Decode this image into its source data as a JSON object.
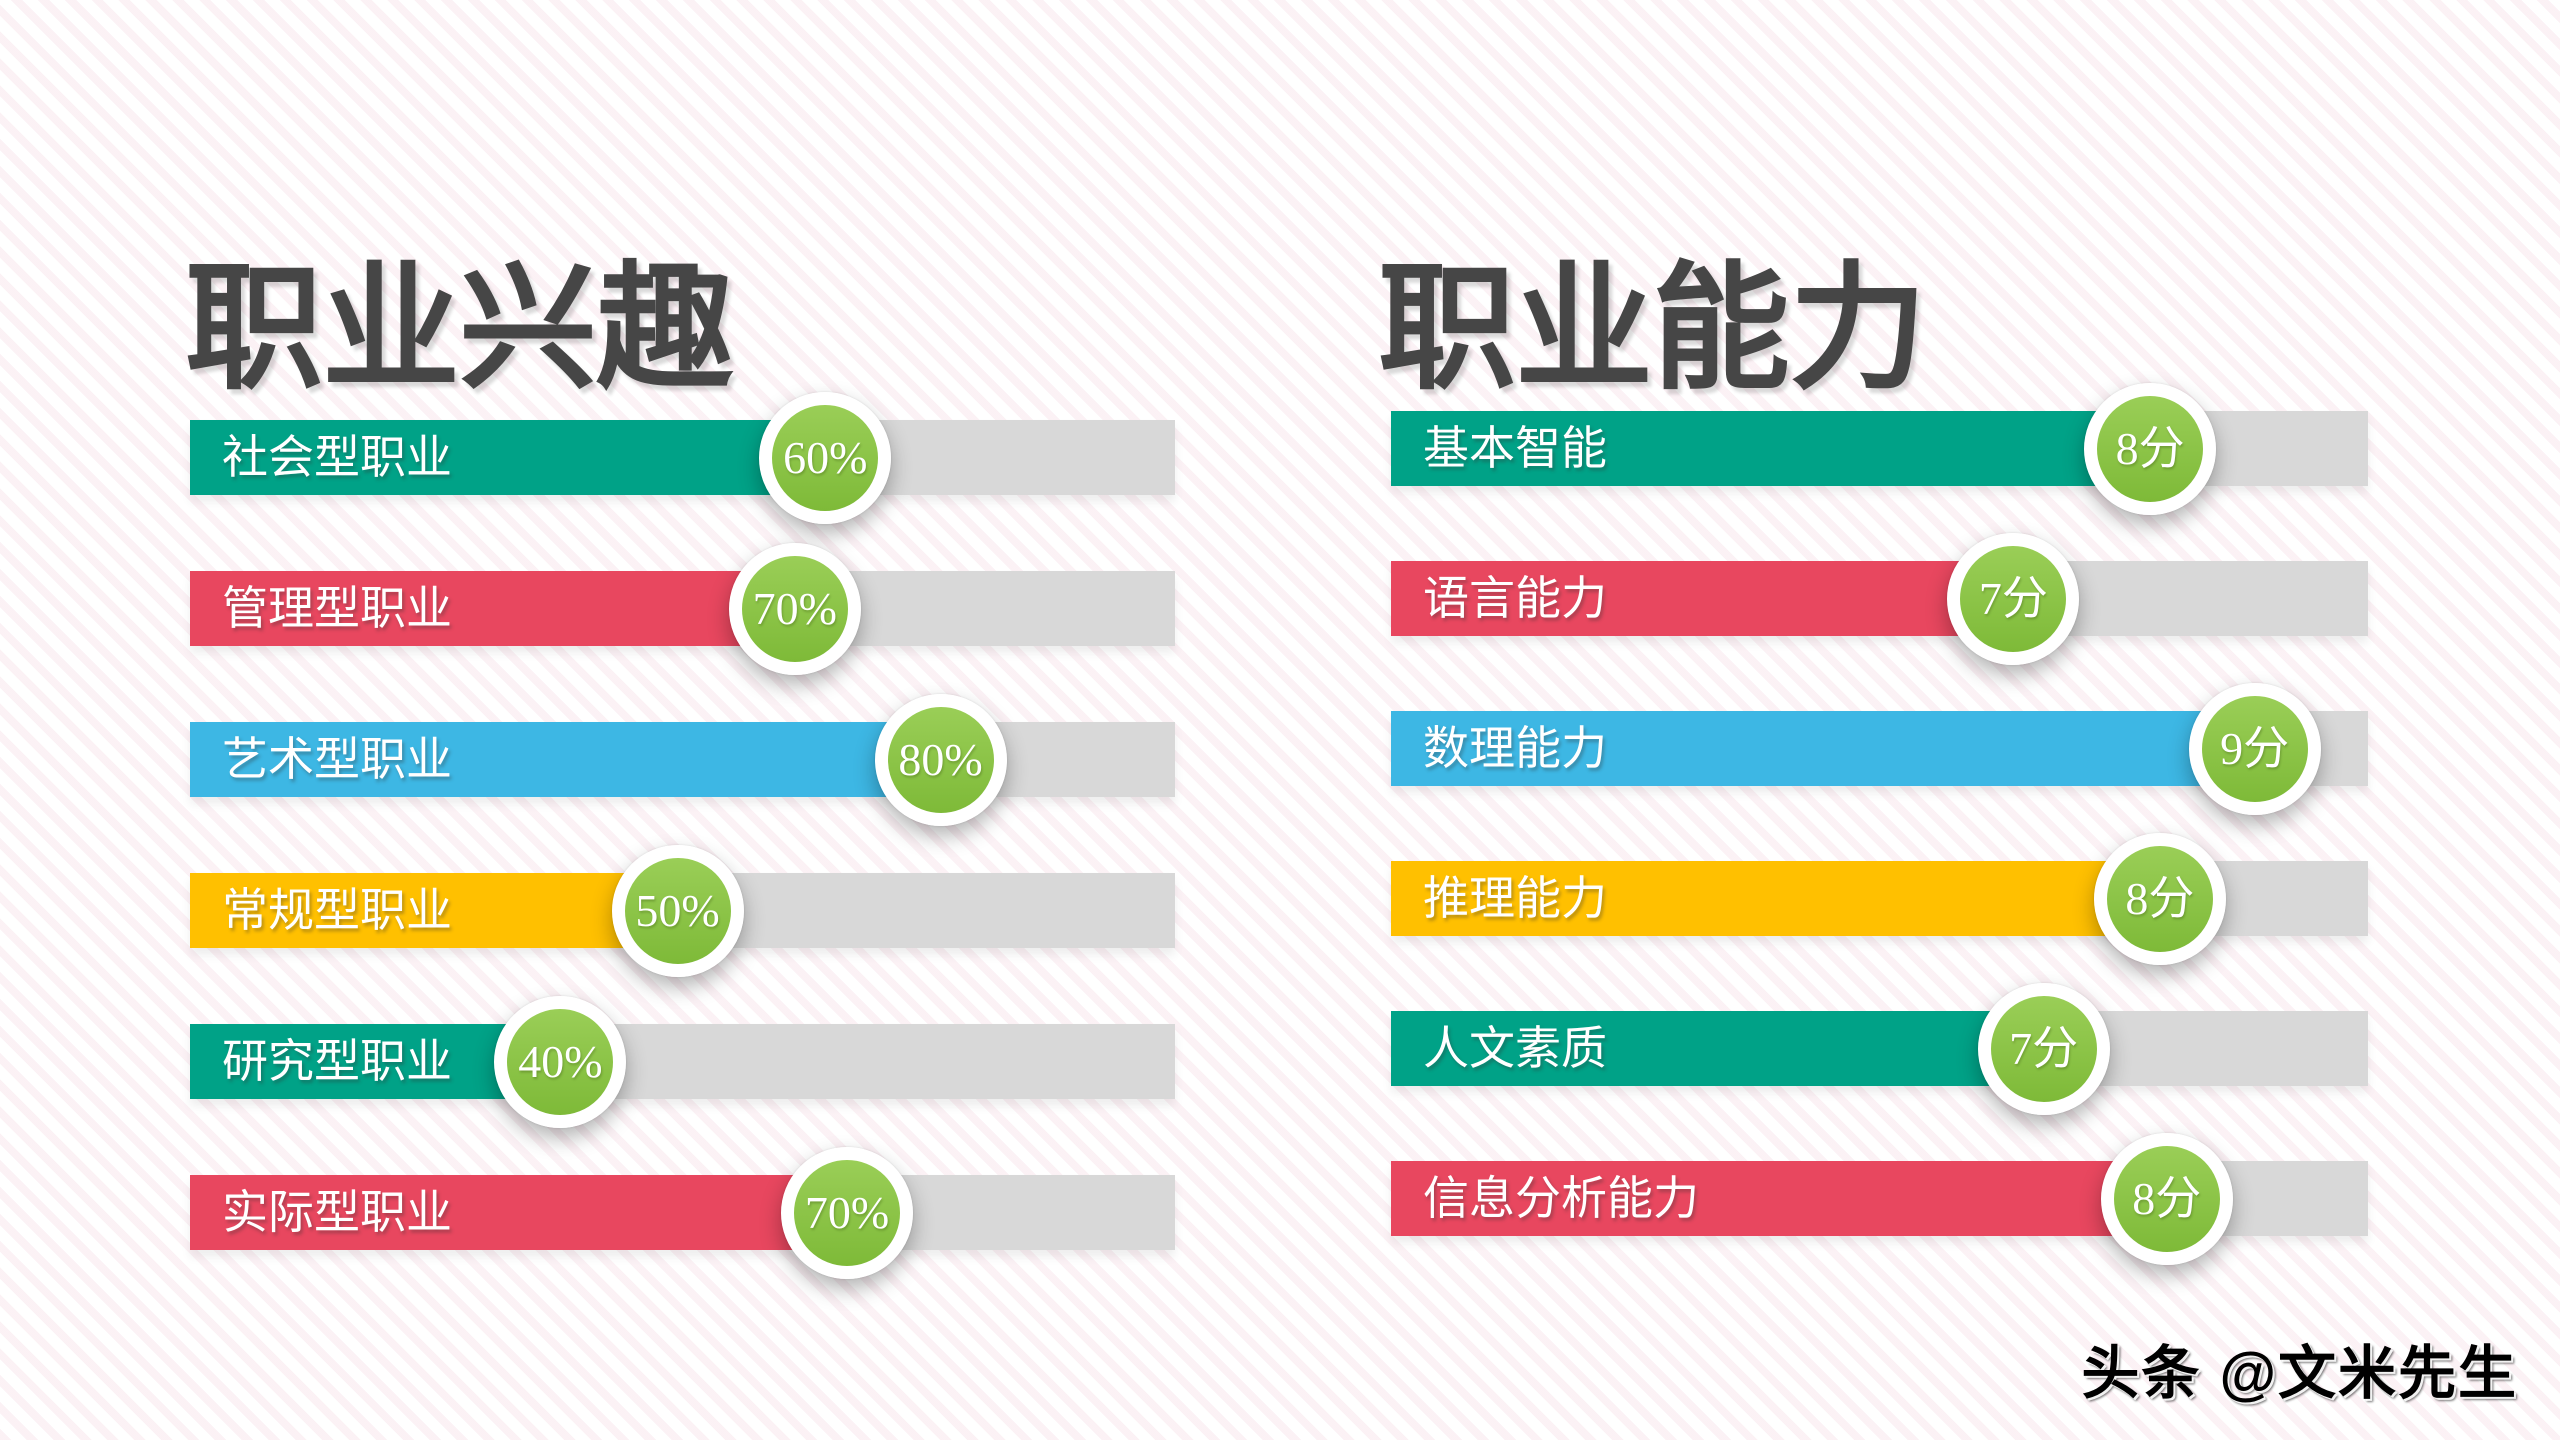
{
  "palette": {
    "teal": "#00a287",
    "red": "#e8475f",
    "blue": "#3db7e4",
    "yellow": "#ffc000",
    "badge_green": "#8ac546",
    "badge_ring": "#ffffff",
    "track_gray": "#d8d8d8",
    "title_gray": "#464646",
    "stripe_pink": "#f6e3ea",
    "label_white": "#ffffff",
    "watermark_black": "#000000"
  },
  "sections": [
    {
      "title": "职业兴趣",
      "rows": [
        {
          "label": "社会型职业",
          "value_label": "60%",
          "value": 60,
          "color": "#00a287",
          "fill_ratio": 0.645
        },
        {
          "label": "管理型职业",
          "value_label": "70%",
          "value": 70,
          "color": "#e8475f",
          "fill_ratio": 0.614
        },
        {
          "label": "艺术型职业",
          "value_label": "80%",
          "value": 80,
          "color": "#3db7e4",
          "fill_ratio": 0.762
        },
        {
          "label": "常规型职业",
          "value_label": "50%",
          "value": 50,
          "color": "#ffc000",
          "fill_ratio": 0.495
        },
        {
          "label": "研究型职业",
          "value_label": "40%",
          "value": 40,
          "color": "#00a287",
          "fill_ratio": 0.376
        },
        {
          "label": "实际型职业",
          "value_label": "70%",
          "value": 70,
          "color": "#e8475f",
          "fill_ratio": 0.667
        }
      ]
    },
    {
      "title": "职业能力",
      "rows": [
        {
          "label": "基本智能",
          "value_label": "8分",
          "value": 8,
          "color": "#00a287",
          "fill_ratio": 0.777
        },
        {
          "label": "语言能力",
          "value_label": "7分",
          "value": 7,
          "color": "#e8475f",
          "fill_ratio": 0.637
        },
        {
          "label": "数理能力",
          "value_label": "9分",
          "value": 9,
          "color": "#3db7e4",
          "fill_ratio": 0.884
        },
        {
          "label": "推理能力",
          "value_label": "8分",
          "value": 8,
          "color": "#ffc000",
          "fill_ratio": 0.787
        },
        {
          "label": "人文素质",
          "value_label": "7分",
          "value": 7,
          "color": "#00a287",
          "fill_ratio": 0.668
        },
        {
          "label": "信息分析能力",
          "value_label": "8分",
          "value": 8,
          "color": "#e8475f",
          "fill_ratio": 0.794
        }
      ]
    }
  ],
  "watermark": "头条 @文米先生",
  "chart_data": [
    {
      "type": "bar",
      "orientation": "horizontal",
      "title": "职业兴趣",
      "categories": [
        "社会型职业",
        "管理型职业",
        "艺术型职业",
        "常规型职业",
        "研究型职业",
        "实际型职业"
      ],
      "values": [
        60,
        70,
        80,
        50,
        40,
        70
      ],
      "unit": "%",
      "value_labels": [
        "60%",
        "70%",
        "80%",
        "50%",
        "40%",
        "70%"
      ],
      "bar_colors": [
        "#00a287",
        "#e8475f",
        "#3db7e4",
        "#ffc000",
        "#00a287",
        "#e8475f"
      ],
      "xlabel": "",
      "ylabel": "",
      "xlim": [
        0,
        100
      ],
      "grid": false,
      "legend": false,
      "value_badge_color": "#8ac546"
    },
    {
      "type": "bar",
      "orientation": "horizontal",
      "title": "职业能力",
      "categories": [
        "基本智能",
        "语言能力",
        "数理能力",
        "推理能力",
        "人文素质",
        "信息分析能力"
      ],
      "values": [
        8,
        7,
        9,
        8,
        7,
        8
      ],
      "unit": "分",
      "value_labels": [
        "8分",
        "7分",
        "9分",
        "8分",
        "7分",
        "8分"
      ],
      "bar_colors": [
        "#00a287",
        "#e8475f",
        "#3db7e4",
        "#ffc000",
        "#00a287",
        "#e8475f"
      ],
      "xlabel": "",
      "ylabel": "",
      "xlim": [
        0,
        10
      ],
      "grid": false,
      "legend": false,
      "value_badge_color": "#8ac546"
    }
  ]
}
